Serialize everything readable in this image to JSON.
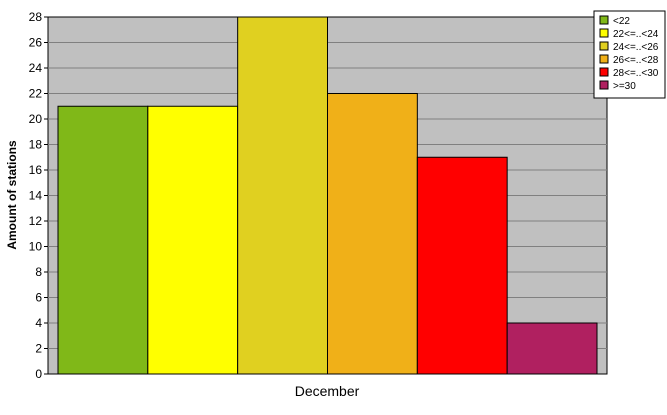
{
  "chart_data": {
    "type": "bar",
    "xlabel": "",
    "ylabel": "Amount of stations",
    "categories": [
      "December"
    ],
    "series": [
      {
        "name": "<22",
        "values": [
          21
        ],
        "color": "#80b818"
      },
      {
        "name": "22<=..<24",
        "values": [
          21
        ],
        "color": "#ffff00"
      },
      {
        "name": "24<=..<26",
        "values": [
          28
        ],
        "color": "#e0d020"
      },
      {
        "name": "26<=..<28",
        "values": [
          22
        ],
        "color": "#f0b018"
      },
      {
        "name": "28<=..<30",
        "values": [
          17
        ],
        "color": "#ff0000"
      },
      {
        "name": ">=30",
        "values": [
          4
        ],
        "color": "#b02060"
      }
    ],
    "ylim": [
      0,
      28
    ],
    "yticks": [
      "0",
      "2",
      "4",
      "6",
      "8",
      "10",
      "12",
      "14",
      "16",
      "18",
      "20",
      "22",
      "24",
      "26",
      "28"
    ],
    "grid": true,
    "legend": "top-right",
    "plot_background": "#c0c0c0"
  }
}
